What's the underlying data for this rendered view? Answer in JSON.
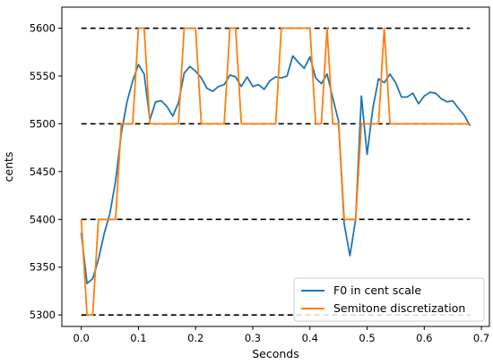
{
  "chart_data": {
    "type": "line",
    "title": "",
    "xlabel": "Seconds",
    "ylabel": "cents",
    "xlim": [
      -0.034,
      0.714
    ],
    "ylim": [
      5288,
      5622
    ],
    "xticks": [
      0.0,
      0.1,
      0.2,
      0.3,
      0.4,
      0.5,
      0.6,
      0.7
    ],
    "xtick_labels": [
      "0.0",
      "0.1",
      "0.2",
      "0.3",
      "0.4",
      "0.5",
      "0.6",
      "0.7"
    ],
    "yticks": [
      5300,
      5350,
      5400,
      5450,
      5500,
      5550,
      5600
    ],
    "ytick_labels": [
      "5300",
      "5350",
      "5400",
      "5450",
      "5500",
      "5550",
      "5600"
    ],
    "grid": false,
    "legend_position": "lower-right",
    "reference_lines": {
      "y": [
        5300,
        5400,
        5500,
        5600
      ],
      "x_range": [
        0.0,
        0.68
      ],
      "color": "#000000",
      "style": "dashed"
    },
    "series": [
      {
        "name": "F0 in cent scale",
        "color": "#1f77b4",
        "x": [
          0.0,
          0.01,
          0.02,
          0.03,
          0.04,
          0.05,
          0.06,
          0.07,
          0.08,
          0.09,
          0.1,
          0.11,
          0.12,
          0.13,
          0.14,
          0.15,
          0.16,
          0.17,
          0.18,
          0.19,
          0.2,
          0.21,
          0.22,
          0.23,
          0.24,
          0.25,
          0.26,
          0.27,
          0.28,
          0.29,
          0.3,
          0.31,
          0.32,
          0.33,
          0.34,
          0.35,
          0.36,
          0.37,
          0.38,
          0.39,
          0.4,
          0.41,
          0.42,
          0.43,
          0.44,
          0.45,
          0.46,
          0.47,
          0.48,
          0.49,
          0.5,
          0.51,
          0.52,
          0.53,
          0.54,
          0.55,
          0.56,
          0.57,
          0.58,
          0.59,
          0.6,
          0.61,
          0.62,
          0.63,
          0.64,
          0.65,
          0.66,
          0.67,
          0.68
        ],
        "y": [
          5386,
          5333,
          5338,
          5358,
          5385,
          5406,
          5440,
          5490,
          5523,
          5545,
          5562,
          5552,
          5504,
          5523,
          5524,
          5518,
          5508,
          5522,
          5553,
          5560,
          5555,
          5548,
          5537,
          5534,
          5539,
          5541,
          5551,
          5549,
          5539,
          5549,
          5539,
          5541,
          5536,
          5545,
          5549,
          5548,
          5550,
          5571,
          5564,
          5558,
          5570,
          5548,
          5542,
          5552,
          5527,
          5503,
          5395,
          5362,
          5400,
          5529,
          5468,
          5516,
          5547,
          5543,
          5552,
          5543,
          5528,
          5528,
          5532,
          5521,
          5529,
          5533,
          5532,
          5526,
          5523,
          5524,
          5516,
          5509,
          5498
        ]
      },
      {
        "name": "Semitone discretization",
        "color": "#ff7f0e",
        "x": [
          0.0,
          0.01,
          0.02,
          0.03,
          0.04,
          0.05,
          0.06,
          0.07,
          0.08,
          0.09,
          0.1,
          0.11,
          0.12,
          0.13,
          0.14,
          0.15,
          0.16,
          0.17,
          0.18,
          0.19,
          0.2,
          0.21,
          0.22,
          0.23,
          0.24,
          0.25,
          0.26,
          0.27,
          0.28,
          0.29,
          0.3,
          0.31,
          0.32,
          0.33,
          0.34,
          0.35,
          0.36,
          0.37,
          0.38,
          0.39,
          0.4,
          0.41,
          0.42,
          0.43,
          0.44,
          0.45,
          0.46,
          0.47,
          0.48,
          0.49,
          0.5,
          0.51,
          0.52,
          0.53,
          0.54,
          0.55,
          0.56,
          0.57,
          0.58,
          0.59,
          0.6,
          0.61,
          0.62,
          0.63,
          0.64,
          0.65,
          0.66,
          0.67,
          0.68
        ],
        "y": [
          5400,
          5300,
          5300,
          5400,
          5400,
          5400,
          5400,
          5500,
          5500,
          5500,
          5600,
          5600,
          5500,
          5500,
          5500,
          5500,
          5500,
          5500,
          5600,
          5600,
          5600,
          5500,
          5500,
          5500,
          5500,
          5500,
          5600,
          5600,
          5500,
          5500,
          5500,
          5500,
          5500,
          5500,
          5500,
          5600,
          5600,
          5600,
          5600,
          5600,
          5600,
          5500,
          5500,
          5600,
          5500,
          5500,
          5400,
          5400,
          5400,
          5500,
          5500,
          5500,
          5500,
          5600,
          5500,
          5500,
          5500,
          5500,
          5500,
          5500,
          5500,
          5500,
          5500,
          5500,
          5500,
          5500,
          5500,
          5500,
          5500
        ]
      }
    ]
  }
}
